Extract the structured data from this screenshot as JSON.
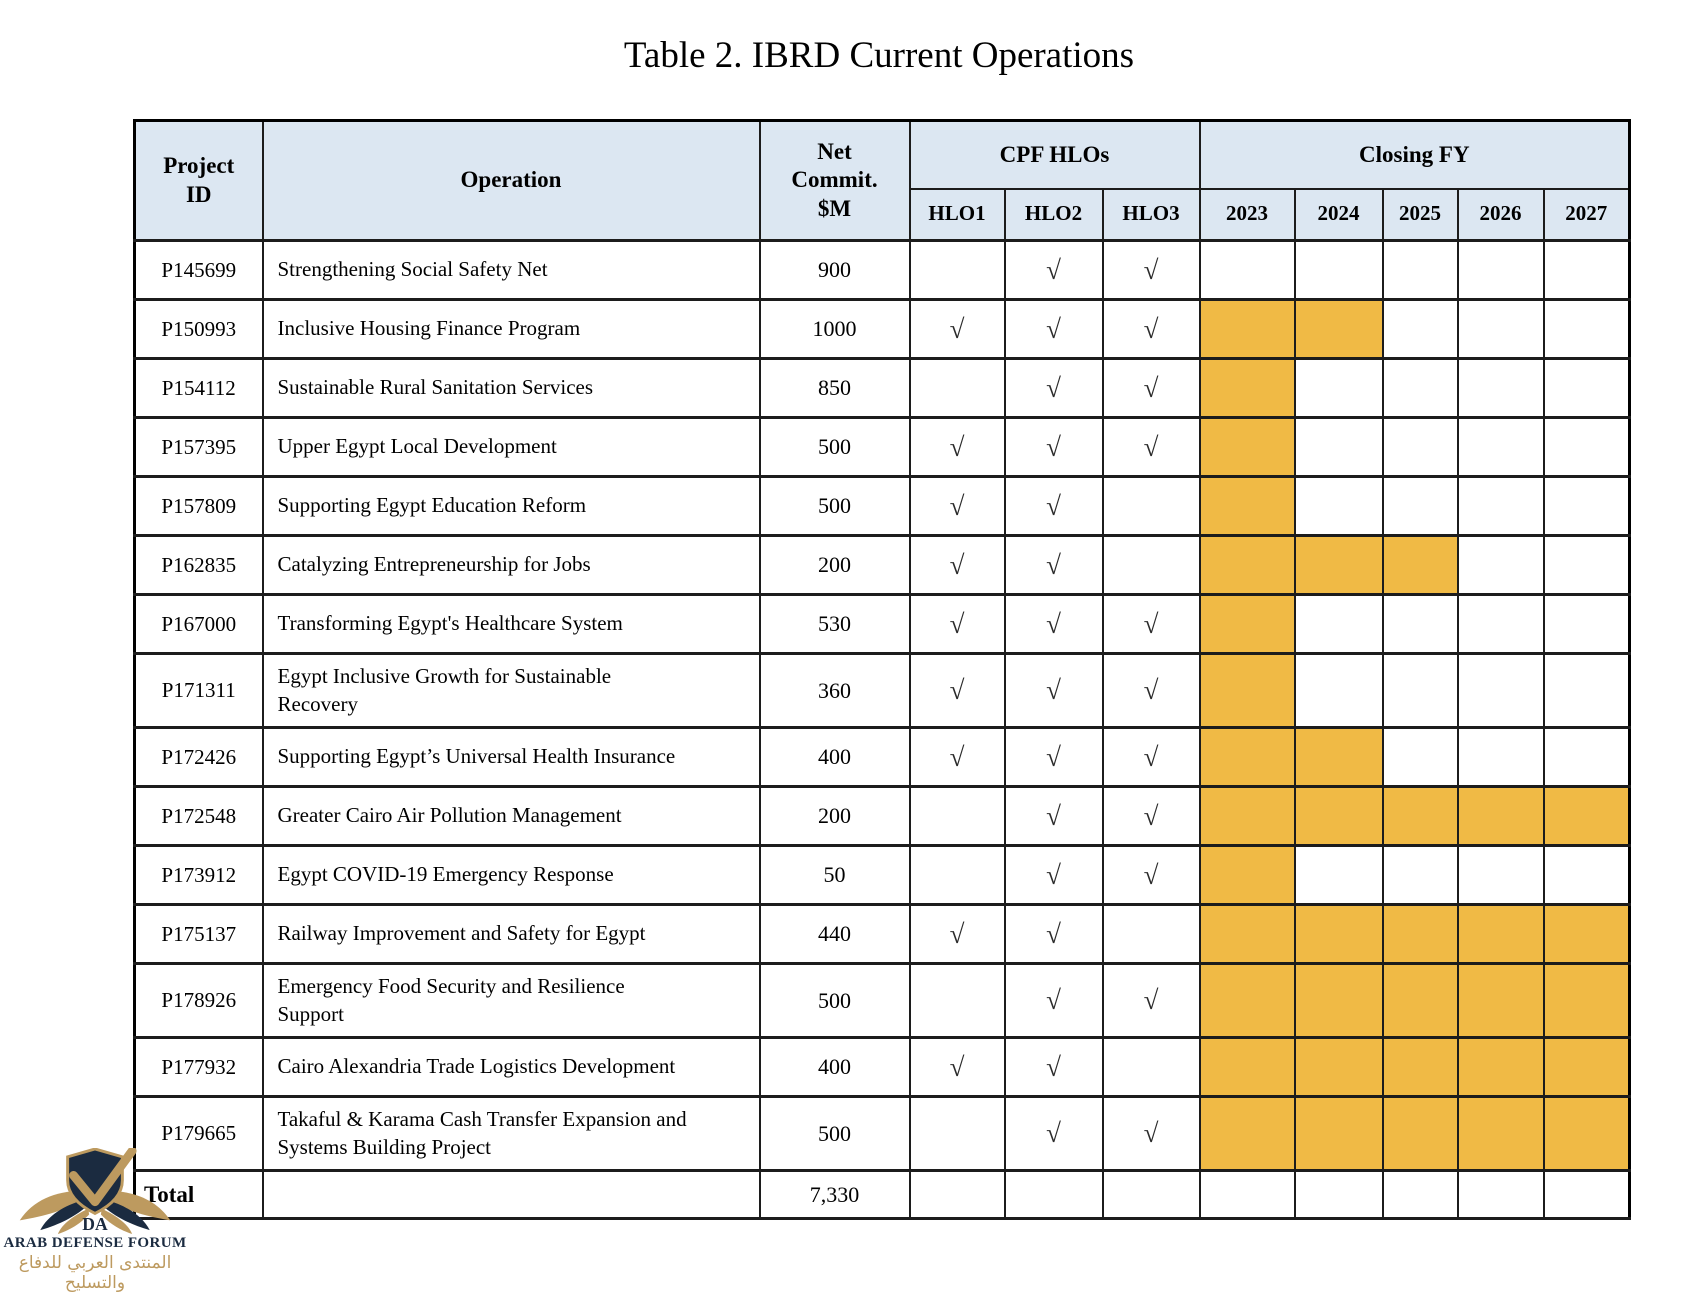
{
  "title": "Table 2. IBRD Current Operations",
  "checkmark": "√",
  "colors": {
    "header_bg": "#dce7f2",
    "highlight": "#f0ba45",
    "logo_navy": "#1b2b40",
    "logo_gold": "#bd9a5f"
  },
  "table": {
    "headers": {
      "project_id": "Project\nID",
      "operation": "Operation",
      "net_commit": "Net\nCommit.\n$M",
      "cpf_hlos": "CPF HLOs",
      "closing_fy": "Closing FY",
      "hlo_cols": [
        "HLO1",
        "HLO2",
        "HLO3"
      ],
      "fy_cols": [
        "2023",
        "2024",
        "2025",
        "2026",
        "2027"
      ]
    },
    "rows": [
      {
        "id": "P145699",
        "operation": "Strengthening Social Safety Net",
        "net_commit": "900",
        "hlo": [
          false,
          true,
          true
        ],
        "fy": [
          false,
          false,
          false,
          false,
          false
        ]
      },
      {
        "id": "P150993",
        "operation": "Inclusive Housing Finance Program",
        "net_commit": "1000",
        "hlo": [
          true,
          true,
          true
        ],
        "fy": [
          true,
          true,
          false,
          false,
          false
        ]
      },
      {
        "id": "P154112",
        "operation": "Sustainable Rural Sanitation Services",
        "net_commit": "850",
        "hlo": [
          false,
          true,
          true
        ],
        "fy": [
          true,
          false,
          false,
          false,
          false
        ]
      },
      {
        "id": "P157395",
        "operation": "Upper Egypt Local Development",
        "net_commit": "500",
        "hlo": [
          true,
          true,
          true
        ],
        "fy": [
          true,
          false,
          false,
          false,
          false
        ]
      },
      {
        "id": "P157809",
        "operation": "Supporting Egypt Education Reform",
        "net_commit": "500",
        "hlo": [
          true,
          true,
          false
        ],
        "fy": [
          true,
          false,
          false,
          false,
          false
        ]
      },
      {
        "id": "P162835",
        "operation": "Catalyzing Entrepreneurship for Jobs",
        "net_commit": "200",
        "hlo": [
          true,
          true,
          false
        ],
        "fy": [
          true,
          true,
          true,
          false,
          false
        ]
      },
      {
        "id": "P167000",
        "operation": "Transforming Egypt's Healthcare System",
        "net_commit": "530",
        "hlo": [
          true,
          true,
          true
        ],
        "fy": [
          true,
          false,
          false,
          false,
          false
        ]
      },
      {
        "id": "P171311",
        "operation": "Egypt Inclusive Growth for Sustainable Recovery",
        "net_commit": "360",
        "hlo": [
          true,
          true,
          true
        ],
        "fy": [
          true,
          false,
          false,
          false,
          false
        ]
      },
      {
        "id": "P172426",
        "operation": "Supporting Egypt’s Universal Health Insurance",
        "net_commit": "400",
        "hlo": [
          true,
          true,
          true
        ],
        "fy": [
          true,
          true,
          false,
          false,
          false
        ]
      },
      {
        "id": "P172548",
        "operation": "Greater Cairo Air Pollution Management",
        "net_commit": "200",
        "hlo": [
          false,
          true,
          true
        ],
        "fy": [
          true,
          true,
          true,
          true,
          true
        ]
      },
      {
        "id": "P173912",
        "operation": "Egypt COVID-19 Emergency Response",
        "net_commit": "50",
        "hlo": [
          false,
          true,
          true
        ],
        "fy": [
          true,
          false,
          false,
          false,
          false
        ]
      },
      {
        "id": "P175137",
        "operation": "Railway Improvement and Safety for Egypt",
        "net_commit": "440",
        "hlo": [
          true,
          true,
          false
        ],
        "fy": [
          true,
          true,
          true,
          true,
          true
        ]
      },
      {
        "id": "P178926",
        "operation": "Emergency Food Security and Resilience Support",
        "net_commit": "500",
        "hlo": [
          false,
          true,
          true
        ],
        "fy": [
          true,
          true,
          true,
          true,
          true
        ]
      },
      {
        "id": "P177932",
        "operation": "Cairo Alexandria Trade Logistics Development",
        "net_commit": "400",
        "hlo": [
          true,
          true,
          false
        ],
        "fy": [
          true,
          true,
          true,
          true,
          true
        ]
      },
      {
        "id": "P179665",
        "operation": "Takaful & Karama Cash Transfer Expansion and Systems Building Project",
        "net_commit": "500",
        "hlo": [
          false,
          true,
          true
        ],
        "fy": [
          true,
          true,
          true,
          true,
          true
        ]
      }
    ],
    "total": {
      "label": "Total",
      "net_commit": "7,330"
    }
  },
  "watermark": {
    "monogram": "DA",
    "line1": "ARAB DEFENSE FORUM",
    "line2": "المنتدى العربي للدفاع والتسليح"
  }
}
